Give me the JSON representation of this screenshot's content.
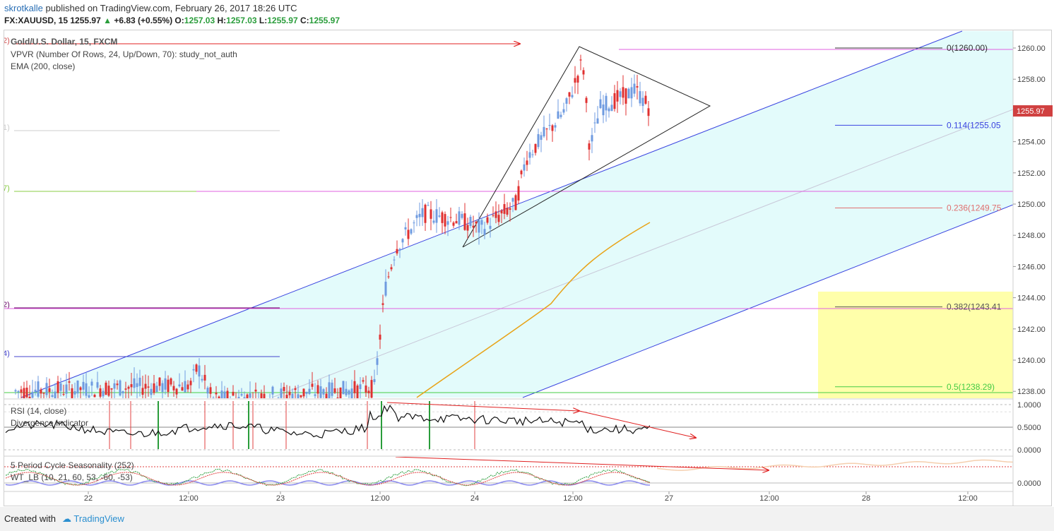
{
  "header": {
    "author": "skrotkalle",
    "published_text": "published on TradingView.com, February 26, 2017 18:26 UTC",
    "symbol": "FX:XAUUSD, 15",
    "last": "1255.97",
    "change": "+6.83 (+0.55%)",
    "open_label": "O:",
    "open": "1257.03",
    "high_label": "H:",
    "high": "1257.03",
    "low_label": "L:",
    "low": "1255.97",
    "close_label": "C:",
    "close": "1255.97"
  },
  "legend": {
    "title": "Gold/U.S. Dollar, 15, FXCM",
    "vpvr": "VPVR (Number Of Rows, 24, Up/Down, 70): study_not_auth",
    "ema": "EMA (200, close)",
    "rsi": "RSI (14, close)",
    "divergence": "Divergence Indicator",
    "seasonality": "5 Period Cycle Seasonality (252)",
    "wt": "WT_LB (10, 21, 60, 53, -60, -53)"
  },
  "footer": {
    "created_with": "Created with",
    "brand": "TradingView"
  },
  "colors": {
    "up_candle": "#6f9be0",
    "down_candle": "#e03030",
    "ema": "#e8a317",
    "channel": "#3a44e0",
    "fib_fill": "#e3fbfb",
    "zone": "#ffffaa",
    "fib_line": "#e060e0"
  },
  "chart_data": [
    {
      "type": "candlestick",
      "title": "Gold/U.S. Dollar, 15, FXCM",
      "x_ticks": [
        "22",
        "12:00",
        "23",
        "12:00",
        "24",
        "12:00",
        "27",
        "12:00",
        "28",
        "12:00"
      ],
      "y_ticks": [
        "1238.00",
        "1240.00",
        "1242.00",
        "1244.00",
        "1246.00",
        "1248.00",
        "1250.00",
        "1252.00",
        "1254.00",
        "1256.00",
        "1258.00",
        "1260.00"
      ],
      "ylim": [
        1237.9,
        1261.0
      ],
      "last_price_label": "1255.97",
      "fib_levels": [
        {
          "label": "0(1260.00)",
          "value": 1260.0
        },
        {
          "label": "0.114(1255.05",
          "value": 1255.05
        },
        {
          "label": "0.236(1249.75",
          "value": 1249.75
        },
        {
          "label": "0.382(1243.41",
          "value": 1243.41
        },
        {
          "label": "0.5(1238.29)",
          "value": 1238.29
        }
      ],
      "left_edge_labels": [
        "2)",
        "1)",
        "7)",
        "2)",
        "4)"
      ],
      "ema_label": "EMA 200"
    },
    {
      "type": "line",
      "title": "RSI (14, close)",
      "y_ticks": [
        "1.0000",
        "0.5000",
        "0.0000"
      ],
      "ylim": [
        0,
        1
      ]
    },
    {
      "type": "line",
      "title": "5 Period Cycle Seasonality (252)",
      "y_ticks": [
        "0.0000"
      ]
    }
  ]
}
